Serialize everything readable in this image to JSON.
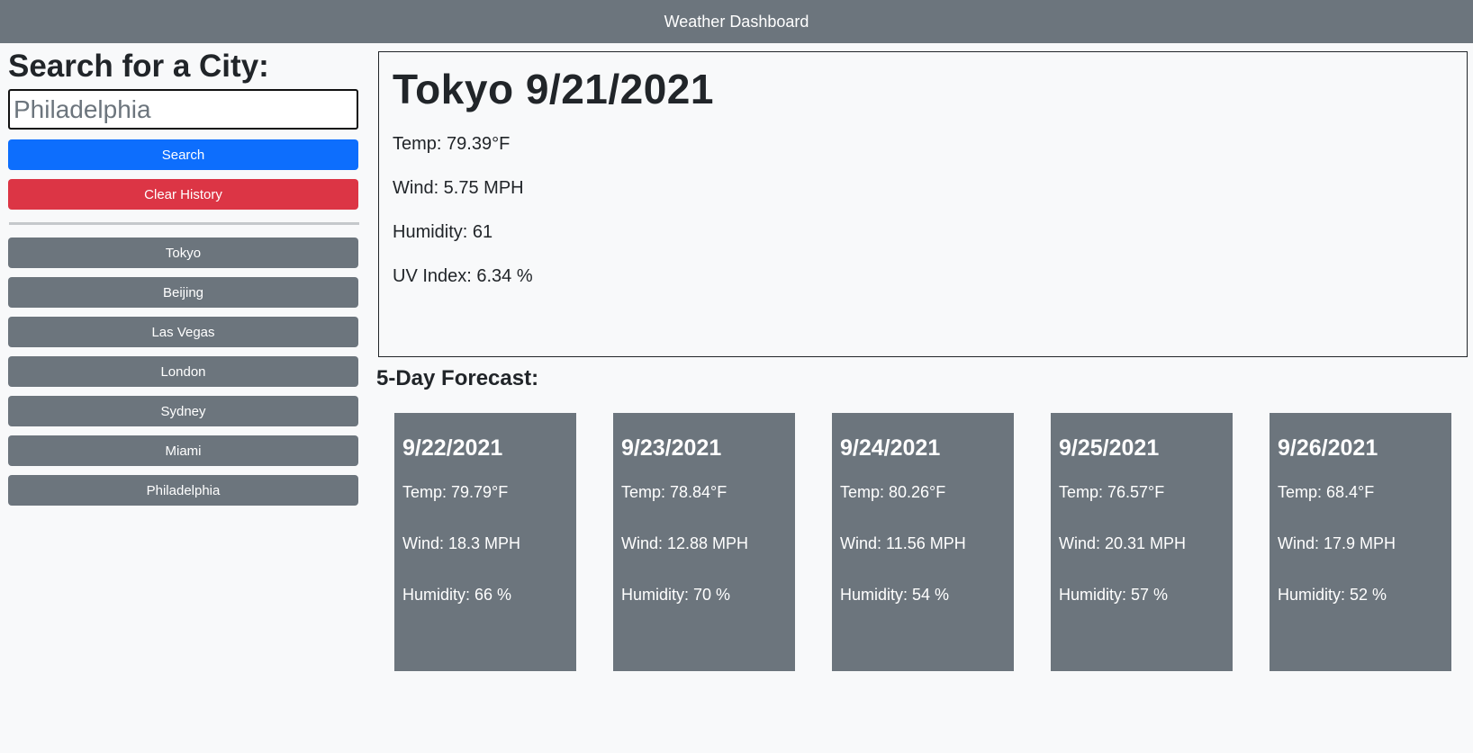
{
  "header": {
    "title": "Weather Dashboard"
  },
  "sidebar": {
    "heading": "Search for a City:",
    "search": {
      "placeholder": "Philadelphia",
      "value": ""
    },
    "search_button": "Search",
    "clear_button": "Clear History",
    "history": [
      "Tokyo",
      "Beijing",
      "Las Vegas",
      "London",
      "Sydney",
      "Miami",
      "Philadelphia"
    ]
  },
  "current": {
    "title": "Tokyo 9/21/2021",
    "temp": "Temp: 79.39°F",
    "wind": "Wind: 5.75 MPH",
    "humidity": "Humidity: 61",
    "uv": "UV Index: 6.34 %"
  },
  "forecast": {
    "heading": "5-Day Forecast:",
    "days": [
      {
        "date": "9/22/2021",
        "temp": "Temp: 79.79°F",
        "wind": "Wind: 18.3 MPH",
        "humidity": "Humidity: 66 %"
      },
      {
        "date": "9/23/2021",
        "temp": "Temp: 78.84°F",
        "wind": "Wind: 12.88 MPH",
        "humidity": "Humidity: 70 %"
      },
      {
        "date": "9/24/2021",
        "temp": "Temp: 80.26°F",
        "wind": "Wind: 11.56 MPH",
        "humidity": "Humidity: 54 %"
      },
      {
        "date": "9/25/2021",
        "temp": "Temp: 76.57°F",
        "wind": "Wind: 20.31 MPH",
        "humidity": "Humidity: 57 %"
      },
      {
        "date": "9/26/2021",
        "temp": "Temp: 68.4°F",
        "wind": "Wind: 17.9 MPH",
        "humidity": "Humidity: 52 %"
      }
    ]
  },
  "colors": {
    "header_bg": "#6c757d",
    "search_button": "#0d6efd",
    "clear_button": "#dc3545",
    "history_button": "#6c757d",
    "forecast_card": "#6c757d",
    "page_bg": "#f8f9fa"
  }
}
